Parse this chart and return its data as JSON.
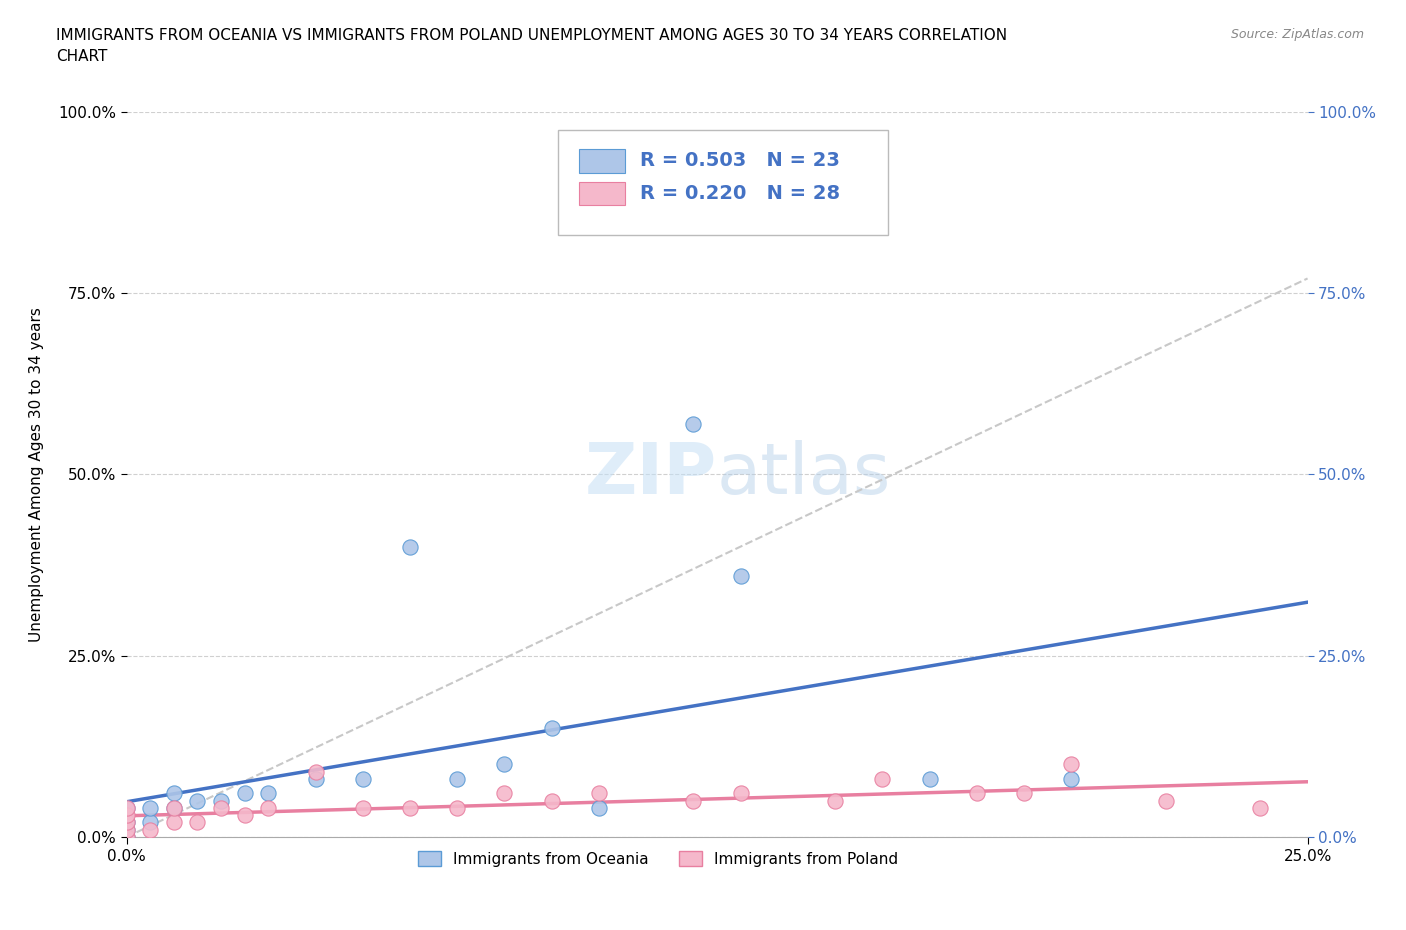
{
  "title": "IMMIGRANTS FROM OCEANIA VS IMMIGRANTS FROM POLAND UNEMPLOYMENT AMONG AGES 30 TO 34 YEARS CORRELATION\nCHART",
  "source_text": "Source: ZipAtlas.com",
  "ylabel": "Unemployment Among Ages 30 to 34 years",
  "xlim": [
    0.0,
    0.25
  ],
  "ylim": [
    0.0,
    1.0
  ],
  "ytick_labels": [
    "0.0%",
    "25.0%",
    "50.0%",
    "75.0%",
    "100.0%"
  ],
  "ytick_vals": [
    0.0,
    0.25,
    0.5,
    0.75,
    1.0
  ],
  "xtick_labels": [
    "0.0%",
    "25.0%"
  ],
  "xtick_vals": [
    0.0,
    0.25
  ],
  "right_ytick_labels": [
    "0.0%",
    "25.0%",
    "50.0%",
    "75.0%",
    "100.0%"
  ],
  "watermark_text": "ZIPatlas",
  "oceania_color": "#aec6e8",
  "poland_color": "#f5b8cb",
  "oceania_edge_color": "#5b9bd5",
  "poland_edge_color": "#e87fa0",
  "oceania_line_color": "#4472c4",
  "poland_line_color": "#e87fa0",
  "trendline_color": "#c8c8c8",
  "R_oceania": 0.503,
  "N_oceania": 23,
  "R_poland": 0.22,
  "N_poland": 28,
  "legend_oceania": "Immigrants from Oceania",
  "legend_poland": "Immigrants from Poland",
  "oceania_x": [
    0.0,
    0.0,
    0.0,
    0.0,
    0.005,
    0.005,
    0.01,
    0.01,
    0.015,
    0.02,
    0.025,
    0.03,
    0.04,
    0.05,
    0.06,
    0.07,
    0.08,
    0.09,
    0.1,
    0.12,
    0.13,
    0.17,
    0.2
  ],
  "oceania_y": [
    0.0,
    0.01,
    0.02,
    0.04,
    0.02,
    0.04,
    0.04,
    0.06,
    0.05,
    0.05,
    0.06,
    0.06,
    0.08,
    0.08,
    0.4,
    0.08,
    0.1,
    0.15,
    0.04,
    0.57,
    0.36,
    0.08,
    0.08
  ],
  "poland_x": [
    0.0,
    0.0,
    0.0,
    0.0,
    0.0,
    0.005,
    0.01,
    0.01,
    0.015,
    0.02,
    0.025,
    0.03,
    0.04,
    0.05,
    0.06,
    0.07,
    0.08,
    0.09,
    0.1,
    0.12,
    0.13,
    0.15,
    0.16,
    0.18,
    0.19,
    0.2,
    0.22,
    0.24
  ],
  "poland_y": [
    0.0,
    0.01,
    0.02,
    0.03,
    0.04,
    0.01,
    0.02,
    0.04,
    0.02,
    0.04,
    0.03,
    0.04,
    0.09,
    0.04,
    0.04,
    0.04,
    0.06,
    0.05,
    0.06,
    0.05,
    0.06,
    0.05,
    0.08,
    0.06,
    0.06,
    0.1,
    0.05,
    0.04
  ]
}
